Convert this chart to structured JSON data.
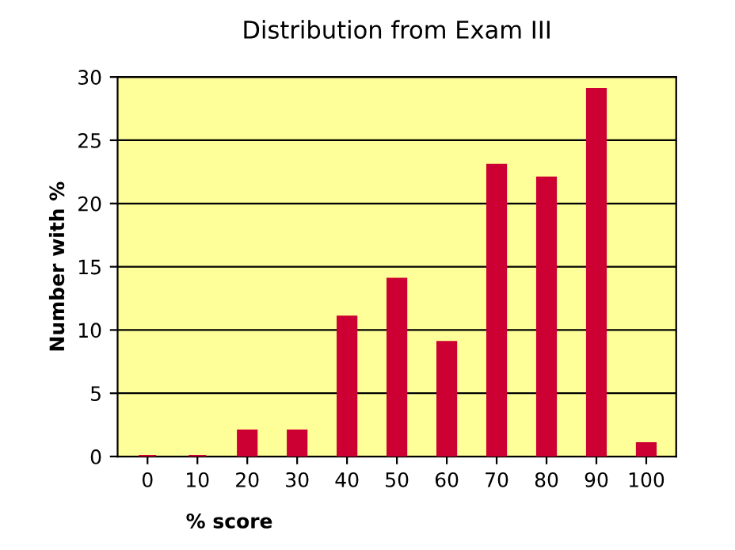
{
  "chart_data": {
    "type": "bar",
    "title": "Distribution from Exam III",
    "xlabel": "% score",
    "ylabel": "Number with %",
    "categories": [
      "0",
      "10",
      "20",
      "30",
      "40",
      "50",
      "60",
      "70",
      "80",
      "90",
      "100"
    ],
    "values": [
      0,
      0,
      2,
      2,
      11,
      14,
      9,
      23,
      22,
      29,
      1
    ],
    "color": "#cc0033",
    "ylim": [
      0,
      30
    ],
    "yticks": [
      0,
      5,
      10,
      15,
      20,
      25,
      30
    ],
    "grid": "y"
  }
}
